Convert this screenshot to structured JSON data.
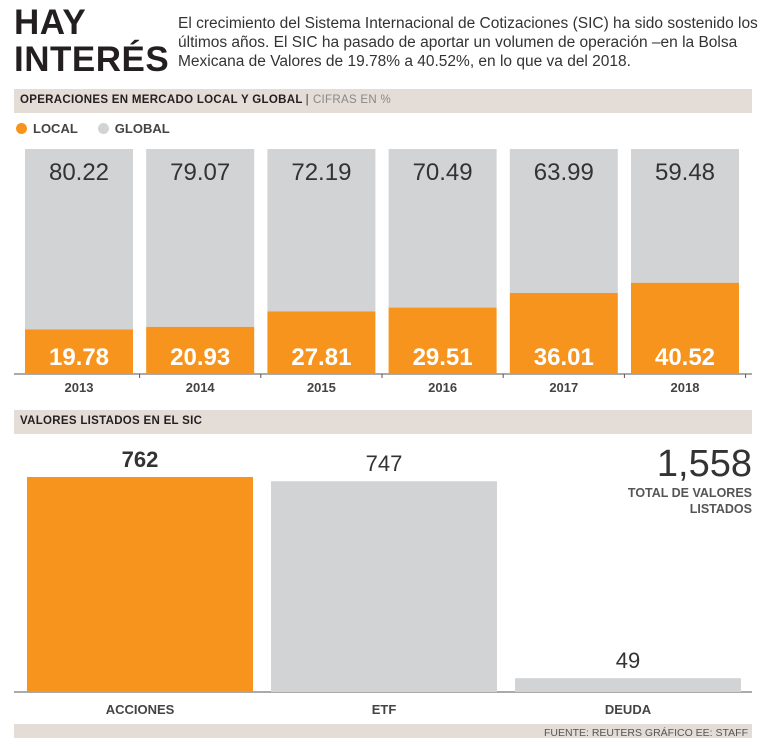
{
  "header": {
    "title_line1": "HAY",
    "title_line2": "INTERÉS",
    "intro": "El crecimiento del Sistema Internacional de Cotizaciones (SIC) ha sido sostenido los últimos años. El SIC ha pasado de aportar un volumen de operación –en la Bolsa Mexicana de Valores de 19.78% a 40.52%, en lo que va del 2018."
  },
  "section1": {
    "title": "OPERACIONES EN MERCADO LOCAL Y GLOBAL",
    "separator": "|",
    "subtitle": "CIFRAS EN %"
  },
  "section2": {
    "title": "VALORES LISTADOS EN EL SIC"
  },
  "total": {
    "value": "1,558",
    "label": "TOTAL DE VALORES LISTADOS"
  },
  "source": "FUENTE: REUTERS GRÁFICO EE: STAFF",
  "colors": {
    "local": "#f7941d",
    "global": "#d1d3d4",
    "band": "#e4dcd6"
  },
  "chart_data": [
    {
      "type": "bar",
      "stacked": true,
      "title": "OPERACIONES EN MERCADO LOCAL Y GLOBAL",
      "categories": [
        "2013",
        "2014",
        "2015",
        "2016",
        "2017",
        "2018"
      ],
      "series": [
        {
          "name": "LOCAL",
          "values": [
            19.78,
            20.93,
            27.81,
            29.51,
            36.01,
            40.52
          ],
          "labels": [
            "19.78",
            "20.93",
            "27.81",
            "29.51",
            "36.01",
            "40.52"
          ]
        },
        {
          "name": "GLOBAL",
          "values": [
            80.22,
            79.07,
            72.19,
            70.49,
            63.99,
            59.48
          ],
          "labels": [
            "80.22",
            "79.07",
            "72.19",
            "70.49",
            "63.99",
            "59.48"
          ]
        }
      ],
      "ylim": [
        0,
        100
      ],
      "legend": "top-left"
    },
    {
      "type": "bar",
      "title": "VALORES LISTADOS EN EL SIC",
      "categories": [
        "ACCIONES",
        "ETF",
        "DEUDA"
      ],
      "values": [
        762,
        747,
        49
      ],
      "labels": [
        "762",
        "747",
        "49"
      ],
      "highlight": [
        true,
        false,
        false
      ],
      "ylim": [
        0,
        762
      ]
    }
  ]
}
